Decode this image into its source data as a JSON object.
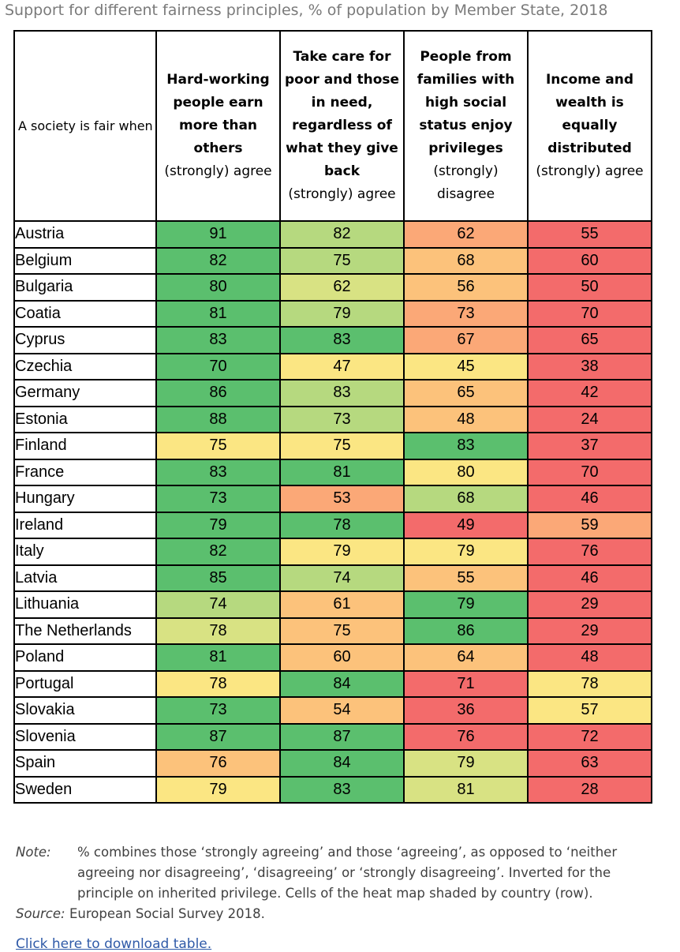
{
  "title": "Support for different fairness principles, % of population by Member State, 2018",
  "header": {
    "first": "A society is fair when",
    "columns": [
      {
        "bold": "Hard-working people earn more than others",
        "sub": "(strongly) agree"
      },
      {
        "bold": "Take care for poor and those in need, regardless of what they give back",
        "sub": "(strongly) agree"
      },
      {
        "bold": "People from families with high social status enjoy privileges",
        "sub": "(strongly) disagree"
      },
      {
        "bold": "Income and wealth is equally distributed",
        "sub": "(strongly) agree"
      }
    ]
  },
  "colors": {
    "dark_green": "#5bbf6e",
    "light_green": "#b6d97f",
    "yellow_green": "#d8e283",
    "yellow": "#fbe683",
    "light_orange": "#fcc27b",
    "orange": "#fba877",
    "red": "#f36b6b"
  },
  "rows": [
    {
      "country": "Austria",
      "values": [
        91,
        82,
        62,
        55
      ],
      "colors": [
        "dark_green",
        "light_green",
        "orange",
        "red"
      ]
    },
    {
      "country": "Belgium",
      "values": [
        82,
        75,
        68,
        60
      ],
      "colors": [
        "dark_green",
        "light_green",
        "light_orange",
        "red"
      ]
    },
    {
      "country": "Bulgaria",
      "values": [
        80,
        62,
        56,
        50
      ],
      "colors": [
        "dark_green",
        "yellow_green",
        "light_orange",
        "red"
      ]
    },
    {
      "country": "Coatia",
      "values": [
        81,
        79,
        73,
        70
      ],
      "colors": [
        "dark_green",
        "light_green",
        "orange",
        "red"
      ]
    },
    {
      "country": "Cyprus",
      "values": [
        83,
        83,
        67,
        65
      ],
      "colors": [
        "dark_green",
        "dark_green",
        "orange",
        "red"
      ]
    },
    {
      "country": "Czechia",
      "values": [
        70,
        47,
        45,
        38
      ],
      "colors": [
        "dark_green",
        "yellow",
        "yellow",
        "red"
      ]
    },
    {
      "country": "Germany",
      "values": [
        86,
        83,
        65,
        42
      ],
      "colors": [
        "dark_green",
        "light_green",
        "light_orange",
        "red"
      ]
    },
    {
      "country": "Estonia",
      "values": [
        88,
        73,
        48,
        24
      ],
      "colors": [
        "dark_green",
        "light_green",
        "light_orange",
        "red"
      ]
    },
    {
      "country": "Finland",
      "values": [
        75,
        75,
        83,
        37
      ],
      "colors": [
        "yellow",
        "yellow",
        "dark_green",
        "red"
      ]
    },
    {
      "country": "France",
      "values": [
        83,
        81,
        80,
        70
      ],
      "colors": [
        "dark_green",
        "dark_green",
        "yellow",
        "red"
      ]
    },
    {
      "country": "Hungary",
      "values": [
        73,
        53,
        68,
        46
      ],
      "colors": [
        "dark_green",
        "orange",
        "light_green",
        "red"
      ]
    },
    {
      "country": "Ireland",
      "values": [
        79,
        78,
        49,
        59
      ],
      "colors": [
        "dark_green",
        "dark_green",
        "red",
        "orange"
      ]
    },
    {
      "country": "Italy",
      "values": [
        82,
        79,
        79,
        76
      ],
      "colors": [
        "dark_green",
        "yellow",
        "yellow",
        "red"
      ]
    },
    {
      "country": "Latvia",
      "values": [
        85,
        74,
        55,
        46
      ],
      "colors": [
        "dark_green",
        "light_green",
        "light_orange",
        "red"
      ]
    },
    {
      "country": "Lithuania",
      "values": [
        74,
        61,
        79,
        29
      ],
      "colors": [
        "light_green",
        "light_orange",
        "dark_green",
        "red"
      ]
    },
    {
      "country": "The Netherlands",
      "values": [
        78,
        75,
        86,
        29
      ],
      "colors": [
        "yellow_green",
        "light_orange",
        "dark_green",
        "red"
      ]
    },
    {
      "country": "Poland",
      "values": [
        81,
        60,
        64,
        48
      ],
      "colors": [
        "dark_green",
        "light_orange",
        "light_orange",
        "red"
      ]
    },
    {
      "country": "Portugal",
      "values": [
        78,
        84,
        71,
        78
      ],
      "colors": [
        "yellow",
        "dark_green",
        "red",
        "yellow"
      ]
    },
    {
      "country": "Slovakia",
      "values": [
        73,
        54,
        36,
        57
      ],
      "colors": [
        "dark_green",
        "light_orange",
        "red",
        "yellow"
      ]
    },
    {
      "country": "Slovenia",
      "values": [
        87,
        87,
        76,
        72
      ],
      "colors": [
        "dark_green",
        "dark_green",
        "red",
        "red"
      ]
    },
    {
      "country": "Spain",
      "values": [
        76,
        84,
        79,
        63
      ],
      "colors": [
        "light_orange",
        "dark_green",
        "yellow_green",
        "red"
      ]
    },
    {
      "country": "Sweden",
      "values": [
        79,
        83,
        81,
        28
      ],
      "colors": [
        "yellow",
        "dark_green",
        "yellow_green",
        "red"
      ]
    }
  ],
  "note": {
    "label": "Note:",
    "text": "% combines those ‘strongly agreeing’ and those ‘agreeing’, as opposed to ‘neither agreeing nor disagreeing’, ‘disagreeing’ or ‘strongly disagreeing’. Inverted for the principle on inherited privilege. Cells of the heat map shaded by country (row)."
  },
  "source": {
    "label": "Source:",
    "text": "European Social Survey 2018."
  },
  "download_link": "Click here to download table."
}
